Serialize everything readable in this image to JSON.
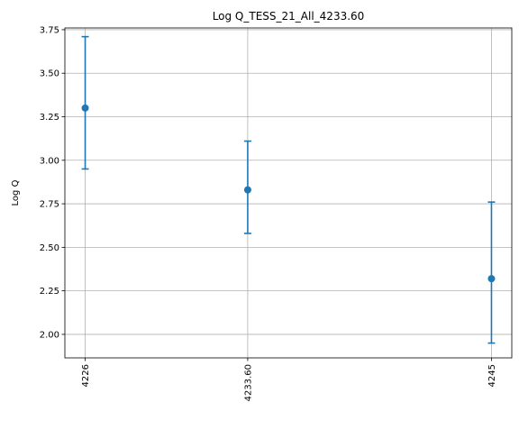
{
  "chart_data": {
    "type": "scatter",
    "title": "Log Q_TESS_21_All_4233.60",
    "xlabel": "",
    "ylabel": "Log Q",
    "categories": [
      "4226",
      "4233.60",
      "4245"
    ],
    "x": [
      4226,
      4233.6,
      4245
    ],
    "xlim": [
      4225.05,
      4245.95
    ],
    "ylim": [
      1.865,
      3.76
    ],
    "y_ticks": [
      "2.00",
      "2.25",
      "2.50",
      "2.75",
      "3.00",
      "3.25",
      "3.50",
      "3.75"
    ],
    "grid": true,
    "series": [
      {
        "values": [
          3.3,
          2.83,
          2.32
        ],
        "err_low": [
          2.95,
          2.58,
          1.95
        ],
        "err_high": [
          3.71,
          3.11,
          2.76
        ],
        "color": "#1f77b4"
      }
    ]
  }
}
